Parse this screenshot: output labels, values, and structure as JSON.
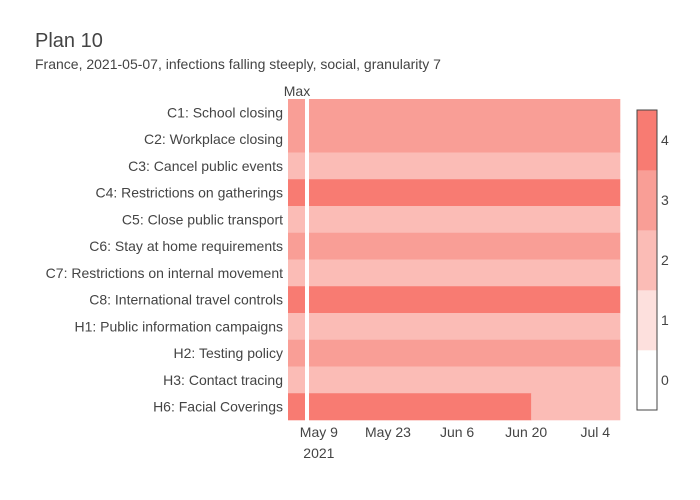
{
  "title": "Plan 10",
  "subtitle": "France, 2021-05-07, infections falling steeply, social, granularity 7",
  "chart_data": {
    "type": "heatmap",
    "max_label": "Max",
    "rows": [
      {
        "label": "C1: School closing",
        "max": 3,
        "segments": [
          {
            "from": "2021-05-07",
            "to": "2021-07-09",
            "value": 3
          }
        ]
      },
      {
        "label": "C2: Workplace closing",
        "max": 3,
        "segments": [
          {
            "from": "2021-05-07",
            "to": "2021-07-09",
            "value": 3
          }
        ]
      },
      {
        "label": "C3: Cancel public events",
        "max": 2,
        "segments": [
          {
            "from": "2021-05-07",
            "to": "2021-07-09",
            "value": 2
          }
        ]
      },
      {
        "label": "C4: Restrictions on gatherings",
        "max": 4,
        "segments": [
          {
            "from": "2021-05-07",
            "to": "2021-07-09",
            "value": 4
          }
        ]
      },
      {
        "label": "C5: Close public transport",
        "max": 2,
        "segments": [
          {
            "from": "2021-05-07",
            "to": "2021-07-09",
            "value": 2
          }
        ]
      },
      {
        "label": "C6: Stay at home requirements",
        "max": 3,
        "segments": [
          {
            "from": "2021-05-07",
            "to": "2021-07-09",
            "value": 3
          }
        ]
      },
      {
        "label": "C7: Restrictions on internal movement",
        "max": 2,
        "segments": [
          {
            "from": "2021-05-07",
            "to": "2021-07-09",
            "value": 2
          }
        ]
      },
      {
        "label": "C8: International travel controls",
        "max": 4,
        "segments": [
          {
            "from": "2021-05-07",
            "to": "2021-07-09",
            "value": 4
          }
        ]
      },
      {
        "label": "H1: Public information campaigns",
        "max": 2,
        "segments": [
          {
            "from": "2021-05-07",
            "to": "2021-07-09",
            "value": 2
          }
        ]
      },
      {
        "label": "H2: Testing policy",
        "max": 3,
        "segments": [
          {
            "from": "2021-05-07",
            "to": "2021-07-09",
            "value": 3
          }
        ]
      },
      {
        "label": "H3: Contact tracing",
        "max": 2,
        "segments": [
          {
            "from": "2021-05-07",
            "to": "2021-07-09",
            "value": 2
          }
        ]
      },
      {
        "label": "H6: Facial Coverings",
        "max": 4,
        "segments": [
          {
            "from": "2021-05-07",
            "to": "2021-06-21",
            "value": 4
          },
          {
            "from": "2021-06-21",
            "to": "2021-07-09",
            "value": 2
          }
        ]
      }
    ],
    "x_ticks": [
      {
        "date": "2021-05-09",
        "label": "May 9",
        "sublabel": "2021"
      },
      {
        "date": "2021-05-23",
        "label": "May 23"
      },
      {
        "date": "2021-06-06",
        "label": "Jun 6"
      },
      {
        "date": "2021-06-20",
        "label": "Jun 20"
      },
      {
        "date": "2021-07-04",
        "label": "Jul 4"
      }
    ],
    "x_range": [
      "2021-05-07",
      "2021-07-09"
    ],
    "colorscale": {
      "min": -0.5,
      "max": 4.5,
      "ticks": [
        0,
        1,
        2,
        3,
        4
      ],
      "colors": [
        "#ffffff",
        "#fde0dd",
        "#fbbcb6",
        "#f99e96",
        "#f87b72"
      ]
    }
  }
}
